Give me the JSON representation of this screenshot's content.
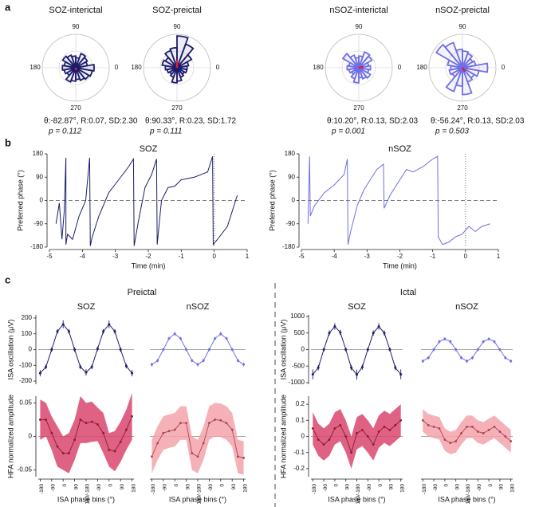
{
  "figure": {
    "panel_labels": [
      "a",
      "b",
      "c"
    ],
    "group_titles": [
      "Preictal",
      "Ictal"
    ]
  },
  "chart_data": [
    {
      "type": "polar",
      "title": "SOZ-interictal",
      "color": "#1c1c6e",
      "theta": [
        0,
        20,
        40,
        60,
        80,
        100,
        120,
        140,
        160,
        180,
        200,
        220,
        240,
        260,
        280,
        300,
        320,
        340
      ],
      "values": [
        0.55,
        0.35,
        0.4,
        0.45,
        0.3,
        0.35,
        0.4,
        0.45,
        0.35,
        0.4,
        0.35,
        0.3,
        0.45,
        0.4,
        0.35,
        0.4,
        0.45,
        0.5
      ],
      "rlim": [
        0,
        1
      ],
      "theta_ticks": [
        0,
        90,
        180,
        270
      ],
      "mean_angle": -82.87,
      "mean_length": 0.07,
      "arrow_color": "#e0202a",
      "stats": "θ:-82.87°, R:0.07, SD:2.30",
      "p_text": "p = 0.112"
    },
    {
      "type": "polar",
      "title": "SOZ-preictal",
      "color": "#1c1c6e",
      "theta": [
        0,
        20,
        40,
        60,
        80,
        100,
        120,
        140,
        160,
        180,
        200,
        220,
        240,
        260,
        280,
        300,
        320,
        340
      ],
      "values": [
        0.3,
        0.35,
        0.5,
        0.75,
        0.95,
        0.6,
        0.55,
        0.4,
        0.45,
        0.35,
        0.3,
        0.25,
        0.3,
        0.45,
        0.4,
        0.3,
        0.25,
        0.3
      ],
      "rlim": [
        0,
        1
      ],
      "theta_ticks": [
        0,
        90,
        180,
        270
      ],
      "mean_angle": 90.33,
      "mean_length": 0.23,
      "arrow_color": "#e0202a",
      "stats": "θ:90.33°, R:0.23, SD:1.72",
      "p_text": "p = 0.111"
    },
    {
      "type": "polar",
      "title": "nSOZ-interictal",
      "color": "#6f6ee6",
      "theta": [
        0,
        20,
        40,
        60,
        80,
        100,
        120,
        140,
        160,
        180,
        200,
        220,
        240,
        260,
        280,
        300,
        320,
        340
      ],
      "values": [
        0.35,
        0.3,
        0.45,
        0.5,
        0.35,
        0.3,
        0.4,
        0.55,
        0.3,
        0.35,
        0.3,
        0.25,
        0.35,
        0.45,
        0.3,
        0.35,
        0.4,
        0.3
      ],
      "rlim": [
        0,
        1
      ],
      "theta_ticks": [
        0,
        90,
        180,
        270
      ],
      "mean_angle": 10.2,
      "mean_length": 0.13,
      "arrow_color": "#e0202a",
      "stats": "θ:10.20°, R:0.13, SD:2.03",
      "p_text": "p = 0.001"
    },
    {
      "type": "polar",
      "title": "nSOZ-preictal",
      "color": "#6f6ee6",
      "theta": [
        0,
        20,
        40,
        60,
        80,
        100,
        120,
        140,
        160,
        180,
        200,
        220,
        240,
        260,
        280,
        300,
        320,
        340
      ],
      "values": [
        0.75,
        0.4,
        0.35,
        0.45,
        0.5,
        0.55,
        0.8,
        0.9,
        0.45,
        0.35,
        0.4,
        0.35,
        0.75,
        0.55,
        0.8,
        0.45,
        0.4,
        0.5
      ],
      "rlim": [
        0,
        1
      ],
      "theta_ticks": [
        0,
        90,
        180,
        270
      ],
      "mean_angle": -56.24,
      "mean_length": 0.13,
      "arrow_color": "#e0202a",
      "stats": "θ:-56.24°, R:0.13, SD:2.03",
      "p_text": "p = 0.503"
    },
    {
      "type": "line",
      "title": "SOZ",
      "color": "#1c1c6e",
      "xlabel": "Time (min)",
      "ylabel": "Preferred phase (°)",
      "x": [
        -4.8,
        -4.7,
        -4.62,
        -4.55,
        -4.5,
        -4.5,
        -4.45,
        -4.3,
        -4.1,
        -3.9,
        -3.78,
        -3.76,
        -3.7,
        -3.5,
        -3.2,
        -2.9,
        -2.6,
        -2.45,
        -2.43,
        -2.3,
        -2.1,
        -1.9,
        -1.75,
        -1.73,
        -1.6,
        -1.4,
        -1.2,
        -1.0,
        -0.6,
        -0.2,
        -0.05,
        -0.03,
        0.1,
        0.4,
        0.7
      ],
      "values": [
        -90,
        -10,
        -150,
        -40,
        165,
        -170,
        -130,
        -150,
        -60,
        0,
        165,
        -175,
        -140,
        -60,
        30,
        80,
        130,
        160,
        -175,
        -80,
        50,
        100,
        160,
        -170,
        0,
        50,
        55,
        80,
        90,
        110,
        170,
        -170,
        -150,
        -100,
        20
      ],
      "xlim": [
        -5,
        1
      ],
      "xticks": [
        -5,
        -4,
        -3,
        -2,
        -1,
        0,
        1
      ],
      "ylim": [
        -180,
        180
      ],
      "yticks": [
        -180,
        -90,
        0,
        90,
        180
      ],
      "reference_y": 0,
      "reference_x": 0
    },
    {
      "type": "line",
      "title": "nSOZ",
      "color": "#6f6ee6",
      "xlabel": "Time (min)",
      "ylabel": "Preferred phase (°)",
      "x": [
        -4.8,
        -4.75,
        -4.73,
        -4.6,
        -4.3,
        -4.0,
        -3.7,
        -3.6,
        -3.58,
        -3.5,
        -3.3,
        -3.1,
        -2.9,
        -2.7,
        -2.5,
        -2.48,
        -2.3,
        -2.0,
        -1.8,
        -1.6,
        -1.3,
        -1.0,
        -0.85,
        -0.83,
        -0.7,
        -0.5,
        -0.3,
        -0.1,
        0.1,
        0.3,
        0.5,
        0.75
      ],
      "values": [
        -90,
        170,
        -60,
        -20,
        30,
        60,
        100,
        160,
        -170,
        -120,
        -20,
        40,
        80,
        120,
        140,
        -30,
        20,
        80,
        120,
        110,
        130,
        160,
        170,
        -140,
        -170,
        -160,
        -140,
        -130,
        -100,
        -120,
        -100,
        -90
      ],
      "xlim": [
        -5,
        1
      ],
      "xticks": [
        -5,
        -4,
        -3,
        -2,
        -1,
        0,
        1
      ],
      "ylim": [
        -180,
        180
      ],
      "yticks": [
        -180,
        -90,
        0,
        90,
        180
      ],
      "reference_y": 0,
      "reference_x": 0
    },
    {
      "type": "errorbar",
      "title": "SOZ",
      "color": "#1c1c6e",
      "ylabel": "ISA oscillation (μV)",
      "x": [
        -180,
        -135,
        -90,
        -45,
        0,
        45,
        90,
        135,
        180,
        225,
        270,
        315,
        360,
        405,
        450,
        495,
        540
      ],
      "values": [
        -150,
        -110,
        0,
        115,
        160,
        115,
        0,
        -110,
        -145,
        -110,
        5,
        115,
        160,
        115,
        0,
        -105,
        -150
      ],
      "errors": [
        20,
        15,
        15,
        15,
        25,
        15,
        15,
        15,
        20,
        15,
        15,
        15,
        25,
        15,
        15,
        15,
        20
      ],
      "xlim": [
        -195,
        555
      ],
      "ylim": [
        -220,
        220
      ],
      "yticks": [
        -200,
        -100,
        0,
        100,
        200
      ],
      "reference_y": 0
    },
    {
      "type": "errorbar",
      "title": "nSOZ",
      "color": "#6f6ee6",
      "x": [
        -180,
        -135,
        -90,
        -45,
        0,
        45,
        90,
        135,
        180,
        225,
        270,
        315,
        360,
        405,
        450,
        495,
        540
      ],
      "values": [
        -95,
        -70,
        0,
        70,
        100,
        70,
        0,
        -70,
        -95,
        -70,
        0,
        70,
        100,
        70,
        0,
        -70,
        -95
      ],
      "errors": [
        12,
        10,
        10,
        10,
        12,
        10,
        10,
        10,
        12,
        10,
        10,
        10,
        12,
        10,
        10,
        10,
        12
      ],
      "xlim": [
        -195,
        555
      ],
      "ylim": [
        -220,
        220
      ],
      "reference_y": 0
    },
    {
      "type": "band",
      "color": "#8a1a30",
      "fill": "#d9466e",
      "ylabel": "HFA normalized amplitude",
      "xlabel": "ISA phase bins (°)",
      "x": [
        -180,
        -135,
        -90,
        -45,
        0,
        45,
        90,
        135,
        180,
        225,
        270,
        315,
        360,
        405,
        450,
        495,
        540
      ],
      "values": [
        0.025,
        0.025,
        0.005,
        -0.015,
        -0.025,
        -0.025,
        -0.005,
        0.025,
        0.02,
        0.022,
        0.018,
        0.005,
        -0.02,
        -0.022,
        -0.008,
        0.01,
        0.03
      ],
      "errors": [
        0.03,
        0.025,
        0.025,
        0.03,
        0.025,
        0.03,
        0.03,
        0.035,
        0.03,
        0.03,
        0.025,
        0.03,
        0.025,
        0.03,
        0.03,
        0.03,
        0.035
      ],
      "xlim": [
        -195,
        555
      ],
      "xticks": [
        -180,
        -90,
        0,
        90,
        {
          "value": 180,
          "label": "180/-180"
        },
        {
          "value": 270,
          "label": "-90"
        },
        {
          "value": 360,
          "label": "0"
        },
        {
          "value": 450,
          "label": "90"
        },
        {
          "value": 540,
          "label": "180"
        }
      ],
      "ylim": [
        -0.06,
        0.06
      ],
      "yticks": [
        -0.05,
        0,
        0.05
      ],
      "reference_y": 0
    },
    {
      "type": "band",
      "color": "#a84552",
      "fill": "#f5a3ab",
      "xlabel": "ISA phase bins (°)",
      "x": [
        -180,
        -135,
        -90,
        -45,
        0,
        45,
        90,
        135,
        180,
        225,
        270,
        315,
        360,
        405,
        450,
        495,
        540
      ],
      "values": [
        -0.03,
        -0.01,
        0.005,
        0.008,
        0.01,
        0.02,
        0.02,
        -0.025,
        -0.03,
        -0.01,
        0.02,
        0.025,
        0.024,
        0.02,
        0.01,
        -0.03,
        -0.032
      ],
      "errors": [
        0.025,
        0.025,
        0.025,
        0.025,
        0.025,
        0.025,
        0.025,
        0.025,
        0.025,
        0.025,
        0.025,
        0.025,
        0.025,
        0.025,
        0.025,
        0.025,
        0.025
      ],
      "xlim": [
        -195,
        555
      ],
      "xticks": [
        -180,
        -90,
        0,
        90,
        {
          "value": 180,
          "label": "180/-180"
        },
        {
          "value": 270,
          "label": "-90"
        },
        {
          "value": 360,
          "label": "0"
        },
        {
          "value": 450,
          "label": "90"
        },
        {
          "value": 540,
          "label": "180"
        }
      ],
      "ylim": [
        -0.06,
        0.06
      ],
      "reference_y": 0
    },
    {
      "type": "errorbar",
      "title": "SOZ",
      "color": "#1c1c6e",
      "ylabel": "ISA oscillation (μV)",
      "x": [
        -180,
        -135,
        -90,
        -45,
        0,
        45,
        90,
        135,
        180,
        225,
        270,
        315,
        360,
        405,
        450,
        495,
        540
      ],
      "values": [
        -750,
        -550,
        0,
        500,
        700,
        520,
        0,
        -550,
        -760,
        -530,
        0,
        500,
        700,
        500,
        0,
        -550,
        -750
      ],
      "errors": [
        150,
        80,
        60,
        80,
        100,
        80,
        60,
        80,
        150,
        80,
        60,
        80,
        100,
        80,
        60,
        80,
        150
      ],
      "xlim": [
        -195,
        555
      ],
      "ylim": [
        -1050,
        1050
      ],
      "yticks": [
        -1000,
        -500,
        0,
        500,
        1000
      ],
      "reference_y": 0
    },
    {
      "type": "errorbar",
      "title": "nSOZ",
      "color": "#6f6ee6",
      "x": [
        -180,
        -135,
        -90,
        -45,
        0,
        45,
        90,
        135,
        180,
        225,
        270,
        315,
        360,
        405,
        450,
        495,
        540
      ],
      "values": [
        -350,
        -250,
        0,
        240,
        320,
        240,
        0,
        -250,
        -350,
        -250,
        0,
        240,
        320,
        240,
        0,
        -250,
        -350
      ],
      "errors": [
        50,
        50,
        50,
        50,
        50,
        50,
        50,
        50,
        50,
        50,
        50,
        50,
        50,
        50,
        50,
        50,
        50
      ],
      "xlim": [
        -195,
        555
      ],
      "ylim": [
        -1050,
        1050
      ],
      "reference_y": 0
    },
    {
      "type": "band",
      "color": "#8a1a30",
      "fill": "#d9466e",
      "ylabel": "HFA normalized amplitude",
      "xlabel": "ISA phase bins (°)",
      "x": [
        -180,
        -135,
        -90,
        -45,
        0,
        45,
        90,
        135,
        180,
        225,
        270,
        315,
        360,
        405,
        450,
        495,
        540
      ],
      "values": [
        0.05,
        -0.02,
        -0.05,
        -0.02,
        0.05,
        0.07,
        0.0,
        -0.1,
        0.02,
        0.04,
        0.0,
        -0.05,
        0.03,
        0.06,
        0.04,
        0.07,
        0.1
      ],
      "errors": [
        0.1,
        0.1,
        0.1,
        0.1,
        0.1,
        0.1,
        0.1,
        0.1,
        0.1,
        0.1,
        0.1,
        0.1,
        0.1,
        0.1,
        0.1,
        0.1,
        0.1
      ],
      "xlim": [
        -195,
        555
      ],
      "xticks": [
        -180,
        -90,
        0,
        90,
        {
          "value": 180,
          "label": "180/-180"
        },
        {
          "value": 270,
          "label": "-90"
        },
        {
          "value": 360,
          "label": "0"
        },
        {
          "value": 450,
          "label": "90"
        },
        {
          "value": 540,
          "label": "180"
        }
      ],
      "ylim": [
        -0.25,
        0.25
      ],
      "yticks": [
        -0.2,
        -0.1,
        0,
        0.1,
        0.2
      ],
      "reference_y": 0
    },
    {
      "type": "band",
      "color": "#a84552",
      "fill": "#f5a3ab",
      "xlabel": "ISA phase bins (°)",
      "x": [
        -180,
        -135,
        -90,
        -45,
        0,
        45,
        90,
        135,
        180,
        225,
        270,
        315,
        360,
        405,
        450,
        495,
        540
      ],
      "values": [
        0.1,
        0.07,
        0.06,
        0.05,
        -0.02,
        -0.04,
        -0.03,
        0.02,
        0.06,
        0.06,
        0.03,
        0.02,
        0.04,
        0.06,
        0.03,
        0.0,
        -0.03
      ],
      "errors": [
        0.07,
        0.07,
        0.07,
        0.07,
        0.07,
        0.07,
        0.07,
        0.07,
        0.07,
        0.07,
        0.07,
        0.07,
        0.07,
        0.07,
        0.07,
        0.07,
        0.07
      ],
      "xlim": [
        -195,
        555
      ],
      "xticks": [
        -180,
        -90,
        0,
        90,
        {
          "value": 180,
          "label": "180/-180"
        },
        {
          "value": 270,
          "label": "-90"
        },
        {
          "value": 360,
          "label": "0"
        },
        {
          "value": 450,
          "label": "90"
        },
        {
          "value": 540,
          "label": "180"
        }
      ],
      "ylim": [
        -0.25,
        0.25
      ],
      "reference_y": 0
    }
  ]
}
